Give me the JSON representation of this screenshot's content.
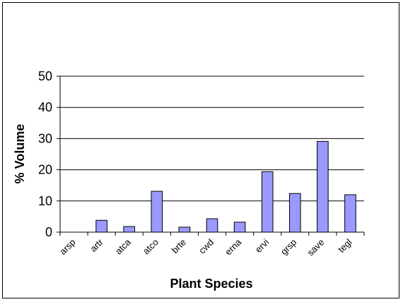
{
  "chart_data": {
    "type": "bar",
    "title": "",
    "xlabel": "Plant Species",
    "ylabel": "% Volume",
    "categories": [
      "arsp",
      "artr",
      "atca",
      "atco",
      "brte",
      "cwd",
      "erna",
      "ervi",
      "grsp",
      "save",
      "tegl"
    ],
    "values": [
      0,
      3.8,
      1.8,
      13.1,
      1.6,
      4.3,
      3.2,
      19.4,
      12.4,
      29.1,
      12.0
    ],
    "ylim": [
      0,
      50
    ],
    "yticks": [
      0,
      10,
      20,
      30,
      40,
      50
    ],
    "grid": true,
    "legend": "none",
    "colors": {
      "bar_fill": "#9999ff",
      "bar_stroke": "#000000"
    }
  }
}
